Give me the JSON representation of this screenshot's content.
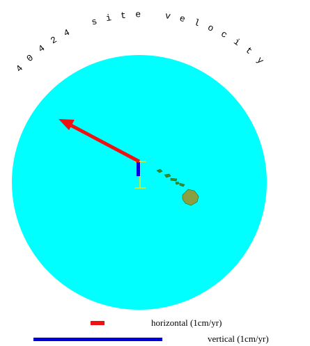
{
  "title": "40424 site velocity",
  "legend": {
    "horizontal": "horizontal (1cm/yr)",
    "vertical": "vertical (1cm/yr)"
  }
}
